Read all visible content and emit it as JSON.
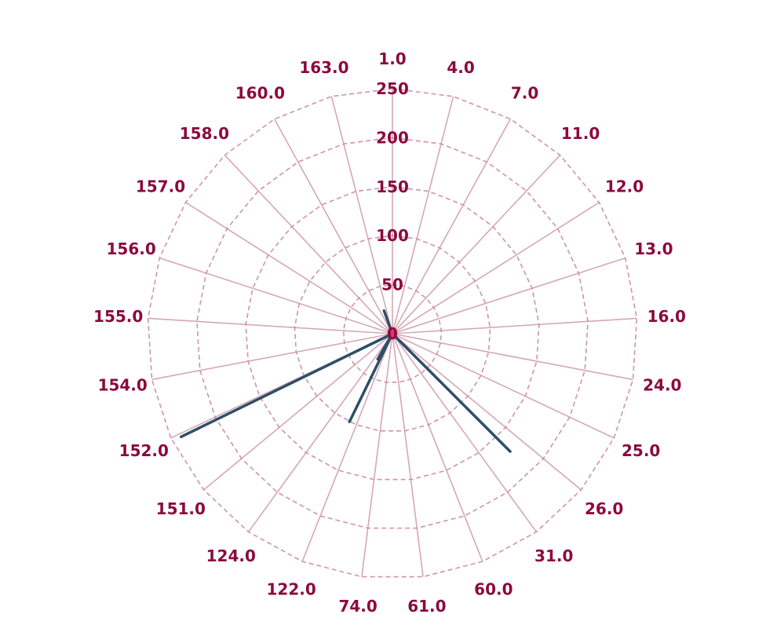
{
  "chart_data": {
    "type": "polar-bar",
    "categories": [
      "1.0",
      "4.0",
      "7.0",
      "11.0",
      "12.0",
      "13.0",
      "16.0",
      "24.0",
      "25.0",
      "26.0",
      "31.0",
      "60.0",
      "61.0",
      "74.0",
      "122.0",
      "124.0",
      "151.0",
      "152.0",
      "154.0",
      "155.0",
      "156.0",
      "157.0",
      "158.0",
      "160.0",
      "163.0"
    ],
    "values": [
      0,
      0,
      0,
      0,
      0,
      0,
      0,
      0,
      0,
      0,
      0,
      0,
      0,
      0,
      0,
      0,
      0,
      0,
      0,
      0,
      0,
      0,
      0,
      0,
      0
    ],
    "segments": [
      {
        "angle_deg": 135,
        "value": 170
      },
      {
        "angle_deg": 206,
        "value": 100
      },
      {
        "angle_deg": 210,
        "value": 30
      },
      {
        "angle_deg": 244,
        "value": 240
      },
      {
        "angle_deg": 340,
        "value": 25
      }
    ],
    "radial_ticks": [
      0,
      50,
      100,
      150,
      200,
      250
    ],
    "rlim": [
      0,
      250
    ],
    "grid": true,
    "colors": {
      "label": "#8b0a3e",
      "grid": "#c98aa0",
      "series": "#2e4f66",
      "center": "#e8336a"
    }
  }
}
